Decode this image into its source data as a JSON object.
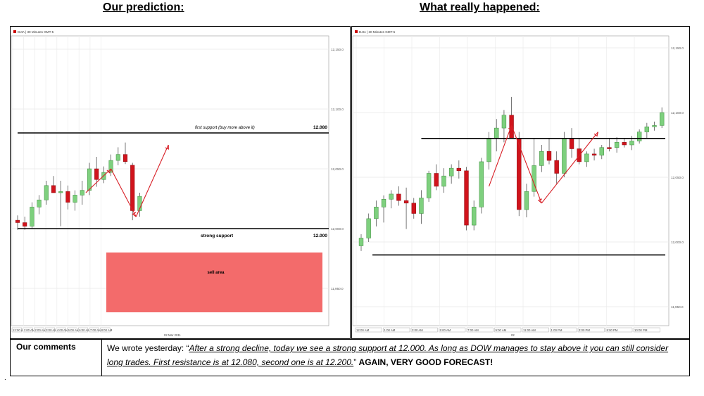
{
  "headings": {
    "left": "Our prediction:",
    "right": "What really happened:"
  },
  "chart_data": [
    {
      "type": "candlestick",
      "panel_label": "DJIA | 30 Minutes GMT-5",
      "y_ticks": [
        "12,150.0",
        "12,100.0",
        "12,050.0",
        "12,000.0",
        "11,950.0"
      ],
      "x_ticks": [
        "12:00 AM",
        "1:00 AM",
        "2:00 AM",
        "3:00 AM",
        "4:00 AM",
        "5:00 AM",
        "6:00 AM",
        "7:00 AM",
        "8:00 AM"
      ],
      "date_label": "02 Mar 2011",
      "candles": [
        {
          "o": 12007,
          "h": 12011,
          "l": 11999,
          "c": 12005
        },
        {
          "o": 12005,
          "h": 12010,
          "l": 11999,
          "c": 12002
        },
        {
          "o": 12002,
          "h": 12022,
          "l": 12000,
          "c": 12018
        },
        {
          "o": 12018,
          "h": 12028,
          "l": 12012,
          "c": 12024
        },
        {
          "o": 12024,
          "h": 12040,
          "l": 12020,
          "c": 12036
        },
        {
          "o": 12036,
          "h": 12044,
          "l": 12030,
          "c": 12030
        },
        {
          "o": 12030,
          "h": 12040,
          "l": 12002,
          "c": 12031
        },
        {
          "o": 12031,
          "h": 12036,
          "l": 12016,
          "c": 12022
        },
        {
          "o": 12022,
          "h": 12032,
          "l": 12015,
          "c": 12028
        },
        {
          "o": 12028,
          "h": 12040,
          "l": 12020,
          "c": 12032
        },
        {
          "o": 12032,
          "h": 12055,
          "l": 12028,
          "c": 12050
        },
        {
          "o": 12050,
          "h": 12060,
          "l": 12035,
          "c": 12041
        },
        {
          "o": 12041,
          "h": 12052,
          "l": 12038,
          "c": 12047
        },
        {
          "o": 12047,
          "h": 12062,
          "l": 12044,
          "c": 12057
        },
        {
          "o": 12057,
          "h": 12068,
          "l": 12053,
          "c": 12062
        },
        {
          "o": 12062,
          "h": 12072,
          "l": 12054,
          "c": 12056
        },
        {
          "o": 12053,
          "h": 12055,
          "l": 12007,
          "c": 12015
        },
        {
          "o": 12015,
          "h": 12030,
          "l": 12010,
          "c": 12027
        }
      ],
      "lines": [
        {
          "label": "first support (buy more above it)",
          "value_label": "12.080",
          "y": 12080
        },
        {
          "label": "strong support",
          "value_label": "12.000",
          "y": 12000
        }
      ],
      "zone": {
        "label": "sell area",
        "y_top": 11980,
        "y_bottom": 11930,
        "color": "#f36b6b"
      },
      "forecast_path": [
        [
          9.5,
          12030
        ],
        [
          13,
          12050
        ],
        [
          16.5,
          12010
        ],
        [
          21,
          12070
        ]
      ]
    },
    {
      "type": "candlestick",
      "panel_label": "DJIA | 30 Minutes GMT-5",
      "y_ticks": [
        "12,150.0",
        "12,100.0",
        "12,050.0",
        "12,000.0",
        "11,950.0"
      ],
      "x_ticks": [
        "12:00 AM",
        "1:00 AM",
        "3:00 AM",
        "5:00 AM",
        "7:00 AM",
        "9:00 AM",
        "11:00 AM",
        "1:00 PM",
        "3:00 PM",
        "8:00 PM",
        "10:00 PM"
      ],
      "date_label": "02",
      "candles": [
        {
          "o": 11997,
          "h": 12006,
          "l": 11993,
          "c": 12003
        },
        {
          "o": 12003,
          "h": 12022,
          "l": 12000,
          "c": 12018
        },
        {
          "o": 12018,
          "h": 12032,
          "l": 12012,
          "c": 12027
        },
        {
          "o": 12027,
          "h": 12036,
          "l": 12015,
          "c": 12033
        },
        {
          "o": 12033,
          "h": 12040,
          "l": 12026,
          "c": 12037
        },
        {
          "o": 12037,
          "h": 12043,
          "l": 12028,
          "c": 12032
        },
        {
          "o": 12032,
          "h": 12042,
          "l": 12010,
          "c": 12030
        },
        {
          "o": 12030,
          "h": 12034,
          "l": 12018,
          "c": 12022
        },
        {
          "o": 12022,
          "h": 12040,
          "l": 12014,
          "c": 12034
        },
        {
          "o": 12034,
          "h": 12055,
          "l": 12031,
          "c": 12053
        },
        {
          "o": 12053,
          "h": 12060,
          "l": 12040,
          "c": 12043
        },
        {
          "o": 12043,
          "h": 12057,
          "l": 12038,
          "c": 12051
        },
        {
          "o": 12051,
          "h": 12060,
          "l": 12045,
          "c": 12057
        },
        {
          "o": 12057,
          "h": 12063,
          "l": 12049,
          "c": 12055
        },
        {
          "o": 12055,
          "h": 12058,
          "l": 12009,
          "c": 12013
        },
        {
          "o": 12013,
          "h": 12032,
          "l": 12009,
          "c": 12027
        },
        {
          "o": 12027,
          "h": 12065,
          "l": 12022,
          "c": 12062
        },
        {
          "o": 12062,
          "h": 12085,
          "l": 12056,
          "c": 12080
        },
        {
          "o": 12080,
          "h": 12095,
          "l": 12070,
          "c": 12088
        },
        {
          "o": 12088,
          "h": 12102,
          "l": 12077,
          "c": 12098
        },
        {
          "o": 12098,
          "h": 12112,
          "l": 12081,
          "c": 12080
        },
        {
          "o": 12080,
          "h": 12085,
          "l": 12020,
          "c": 12025
        },
        {
          "o": 12025,
          "h": 12045,
          "l": 12019,
          "c": 12039
        },
        {
          "o": 12039,
          "h": 12080,
          "l": 12035,
          "c": 12059
        },
        {
          "o": 12059,
          "h": 12075,
          "l": 12054,
          "c": 12070
        },
        {
          "o": 12070,
          "h": 12080,
          "l": 12060,
          "c": 12063
        },
        {
          "o": 12063,
          "h": 12070,
          "l": 12045,
          "c": 12053
        },
        {
          "o": 12053,
          "h": 12085,
          "l": 12050,
          "c": 12080
        },
        {
          "o": 12080,
          "h": 12088,
          "l": 12065,
          "c": 12072
        },
        {
          "o": 12072,
          "h": 12080,
          "l": 12060,
          "c": 12062
        },
        {
          "o": 12062,
          "h": 12070,
          "l": 12058,
          "c": 12068
        },
        {
          "o": 12068,
          "h": 12072,
          "l": 12063,
          "c": 12067
        },
        {
          "o": 12067,
          "h": 12075,
          "l": 12064,
          "c": 12073
        },
        {
          "o": 12073,
          "h": 12080,
          "l": 12070,
          "c": 12072
        },
        {
          "o": 12073,
          "h": 12081,
          "l": 12069,
          "c": 12077
        },
        {
          "o": 12077,
          "h": 12080,
          "l": 12073,
          "c": 12075
        },
        {
          "o": 12075,
          "h": 12082,
          "l": 12071,
          "c": 12078
        },
        {
          "o": 12078,
          "h": 12087,
          "l": 12076,
          "c": 12085
        },
        {
          "o": 12085,
          "h": 12092,
          "l": 12080,
          "c": 12089
        },
        {
          "o": 12089,
          "h": 12093,
          "l": 12086,
          "c": 12090
        },
        {
          "o": 12090,
          "h": 12104,
          "l": 12088,
          "c": 12100
        }
      ],
      "lines": [
        {
          "label": "",
          "value_label": "",
          "y": 12080,
          "x_from": 8
        },
        {
          "label": "",
          "value_label": "",
          "y": 11990,
          "x_from": 1.5
        }
      ],
      "forecast_path": [
        [
          17,
          12043
        ],
        [
          20,
          12090
        ],
        [
          24,
          12030
        ],
        [
          31.5,
          12085
        ]
      ]
    }
  ],
  "comments": {
    "label": "Our comments",
    "lead": "We wrote yesterday: “",
    "quote": "After a strong decline, today we see a strong support at 12.000. As long as DOW manages to stay above it you can still consider long trades. First resistance is at 12.080, second one is at 12.200.",
    "close": "” ",
    "emphasis": "AGAIN, VERY GOOD FORECAST!"
  },
  "footer_dot": "."
}
